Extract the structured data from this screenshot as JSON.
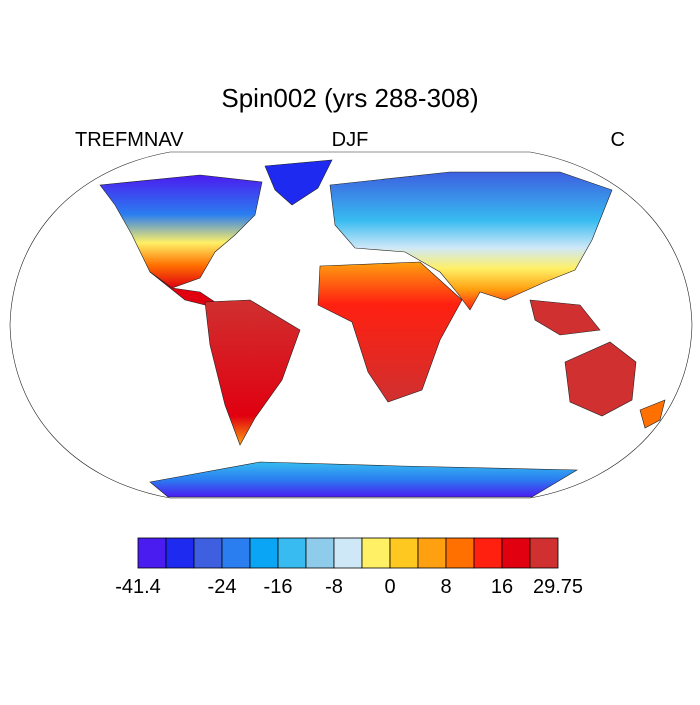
{
  "header": {
    "title": "Spin002 (yrs 288-308)",
    "left": "TREFMNAV",
    "center": "DJF",
    "right": "C"
  },
  "colorbar": {
    "colors": [
      "#4b1cf0",
      "#1e2af0",
      "#3d5fe0",
      "#2a7ef0",
      "#0aa5f5",
      "#37bbf0",
      "#8fcbeb",
      "#cfe8f8",
      "#fff066",
      "#ffc820",
      "#ffa010",
      "#ff7000",
      "#ff2010",
      "#e00010",
      "#d03030"
    ],
    "labels": [
      -41.4,
      null,
      null,
      -24,
      null,
      -16,
      null,
      -8,
      null,
      0,
      null,
      8,
      null,
      16,
      null,
      29.75
    ]
  }
}
